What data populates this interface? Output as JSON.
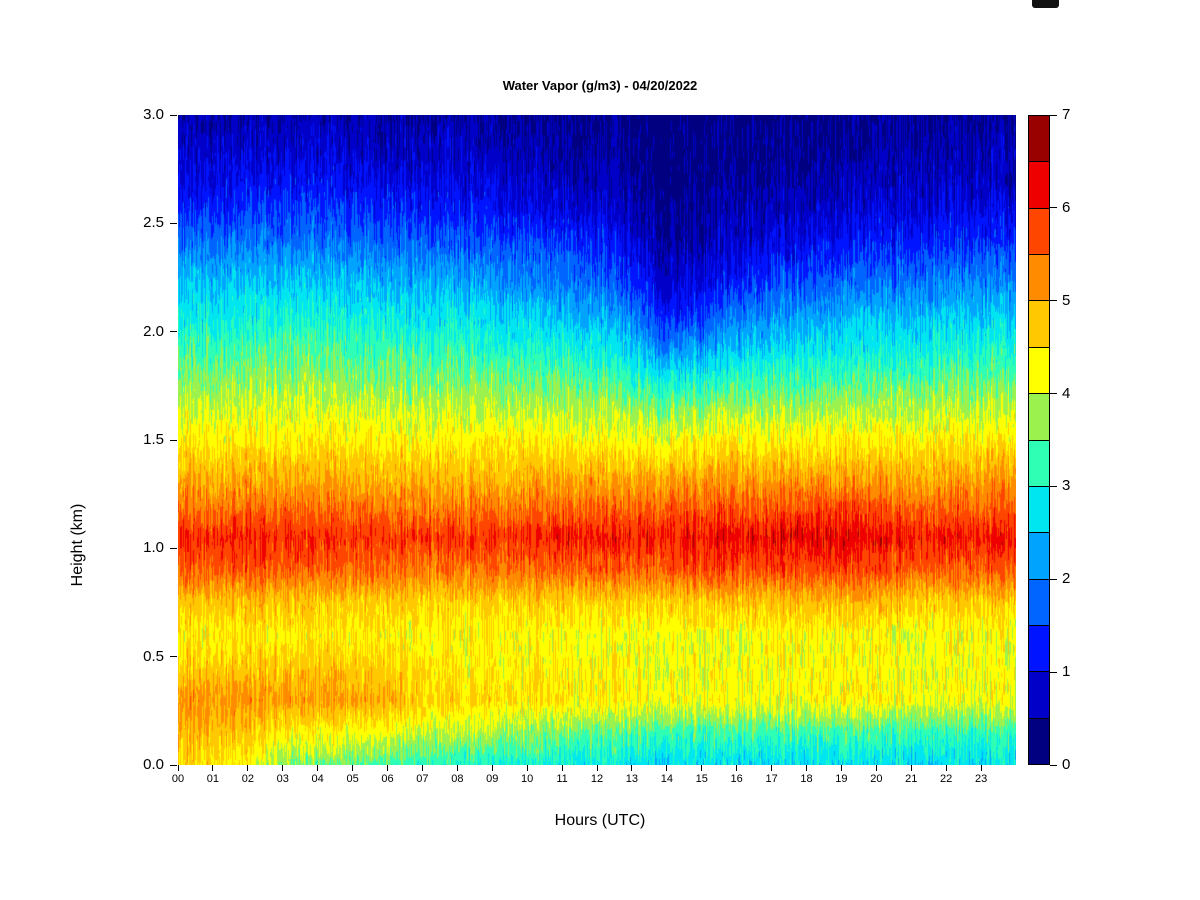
{
  "page": {
    "background": "#FFFFFF"
  },
  "chart_data": {
    "type": "heatmap",
    "title": "Water Vapor (g/m3) - 04/20/2022",
    "xlabel": "Hours (UTC)",
    "ylabel": "Height (km)",
    "units": "g/m3",
    "x_range_hours": [
      0,
      24
    ],
    "y_range_km": [
      0,
      3
    ],
    "grid_lines": "off",
    "x_tick_labels": [
      "00",
      "01",
      "02",
      "03",
      "04",
      "05",
      "06",
      "07",
      "08",
      "09",
      "10",
      "11",
      "12",
      "13",
      "14",
      "15",
      "16",
      "17",
      "18",
      "19",
      "20",
      "21",
      "22",
      "23"
    ],
    "y_tick_labels": [
      "0.0",
      "0.5",
      "1.0",
      "1.5",
      "2.0",
      "2.5",
      "3.0"
    ],
    "colorbar": {
      "min": 0,
      "max": 7,
      "segment_step": 0.5,
      "position": "right",
      "tick_labels": [
        "0",
        "1",
        "2",
        "3",
        "4",
        "5",
        "6",
        "7"
      ],
      "colors_low_to_high": [
        "#000080",
        "#0000C8",
        "#0014FF",
        "#0064FF",
        "#00A4FF",
        "#00E6F0",
        "#2EFFB4",
        "#9BF24E",
        "#FFFF00",
        "#FFC800",
        "#FF8C00",
        "#FF4600",
        "#EE0000",
        "#990000"
      ]
    },
    "grid": {
      "hour_step": 1,
      "height_step_km": 0.15,
      "heights_km": [
        0.0,
        0.15,
        0.3,
        0.45,
        0.6,
        0.75,
        0.9,
        1.05,
        1.2,
        1.35,
        1.5,
        1.65,
        1.8,
        1.95,
        2.1,
        2.25,
        2.4,
        2.55,
        2.7,
        2.85,
        3.0
      ],
      "values_by_hour": [
        [
          4.6,
          4.9,
          5.2,
          4.7,
          4.4,
          4.8,
          5.6,
          6.0,
          5.4,
          4.9,
          4.4,
          4.0,
          3.6,
          3.2,
          2.8,
          2.4,
          1.9,
          1.4,
          1.0,
          0.8,
          0.6
        ],
        [
          4.6,
          4.9,
          5.2,
          4.7,
          4.4,
          4.8,
          5.6,
          6.0,
          5.4,
          4.9,
          4.4,
          4.0,
          3.6,
          3.2,
          2.8,
          2.4,
          1.9,
          1.4,
          1.0,
          0.8,
          0.6
        ],
        [
          4.3,
          4.7,
          5.2,
          4.7,
          4.4,
          4.8,
          5.6,
          6.0,
          5.4,
          4.9,
          4.4,
          4.0,
          3.6,
          3.2,
          2.8,
          2.4,
          1.9,
          1.4,
          1.1,
          0.8,
          0.6
        ],
        [
          3.7,
          4.4,
          5.1,
          4.7,
          4.4,
          4.8,
          5.6,
          6.0,
          5.4,
          4.9,
          4.4,
          4.0,
          3.7,
          3.3,
          2.9,
          2.4,
          1.9,
          1.5,
          1.1,
          0.8,
          0.6
        ],
        [
          3.5,
          4.3,
          5.1,
          4.7,
          4.4,
          4.7,
          5.5,
          5.9,
          5.4,
          4.9,
          4.4,
          4.0,
          3.7,
          3.3,
          2.9,
          2.4,
          1.9,
          1.5,
          1.1,
          0.8,
          0.6
        ],
        [
          3.5,
          4.3,
          5.1,
          4.7,
          4.4,
          4.7,
          5.5,
          5.9,
          5.4,
          4.9,
          4.4,
          4.0,
          3.6,
          3.2,
          2.8,
          2.4,
          1.9,
          1.4,
          1.0,
          0.8,
          0.6
        ],
        [
          3.4,
          4.2,
          5.0,
          4.7,
          4.4,
          4.7,
          5.5,
          5.9,
          5.4,
          4.8,
          4.4,
          4.0,
          3.6,
          3.2,
          2.8,
          2.3,
          1.8,
          1.4,
          1.0,
          0.7,
          0.5
        ],
        [
          3.2,
          4.0,
          4.7,
          4.5,
          4.3,
          4.6,
          5.4,
          5.9,
          5.3,
          4.8,
          4.3,
          3.9,
          3.5,
          3.1,
          2.7,
          2.3,
          1.8,
          1.3,
          0.9,
          0.7,
          0.5
        ],
        [
          3.1,
          3.9,
          4.6,
          4.4,
          4.3,
          4.6,
          5.4,
          5.9,
          5.3,
          4.8,
          4.3,
          3.9,
          3.5,
          3.1,
          2.7,
          2.2,
          1.7,
          1.3,
          0.9,
          0.7,
          0.5
        ],
        [
          3.0,
          3.8,
          4.6,
          4.4,
          4.3,
          4.7,
          5.5,
          6.0,
          5.4,
          4.8,
          4.4,
          3.9,
          3.5,
          3.0,
          2.6,
          2.1,
          1.7,
          1.2,
          0.9,
          0.6,
          0.5
        ],
        [
          3.0,
          3.7,
          4.5,
          4.4,
          4.3,
          4.7,
          5.5,
          6.0,
          5.4,
          4.9,
          4.4,
          3.9,
          3.4,
          3.0,
          2.5,
          2.0,
          1.6,
          1.1,
          0.8,
          0.6,
          0.4
        ],
        [
          2.9,
          3.6,
          4.5,
          4.4,
          4.3,
          4.7,
          5.6,
          6.1,
          5.5,
          4.9,
          4.4,
          3.9,
          3.4,
          2.9,
          2.4,
          1.9,
          1.5,
          1.0,
          0.7,
          0.5,
          0.4
        ],
        [
          2.9,
          3.5,
          4.4,
          4.3,
          4.2,
          4.7,
          5.6,
          6.1,
          5.5,
          4.9,
          4.3,
          3.8,
          3.3,
          2.8,
          2.3,
          1.8,
          1.3,
          0.9,
          0.6,
          0.5,
          0.4
        ],
        [
          2.8,
          3.4,
          4.4,
          4.3,
          4.2,
          4.7,
          5.6,
          6.1,
          5.5,
          4.9,
          4.3,
          3.8,
          3.1,
          2.5,
          1.9,
          1.4,
          1.0,
          0.7,
          0.5,
          0.4,
          0.3
        ],
        [
          2.7,
          3.3,
          4.3,
          4.2,
          4.2,
          4.7,
          5.7,
          6.2,
          5.6,
          4.9,
          4.3,
          3.6,
          2.8,
          1.9,
          1.2,
          0.8,
          0.5,
          0.4,
          0.3,
          0.25,
          0.2
        ],
        [
          2.7,
          3.3,
          4.3,
          4.2,
          4.2,
          4.8,
          5.7,
          6.2,
          5.6,
          5.0,
          4.3,
          3.7,
          2.9,
          2.1,
          1.4,
          0.9,
          0.6,
          0.5,
          0.4,
          0.3,
          0.2
        ],
        [
          2.7,
          3.3,
          4.3,
          4.2,
          4.2,
          4.8,
          5.7,
          6.2,
          5.6,
          5.0,
          4.4,
          3.8,
          3.1,
          2.4,
          1.8,
          1.2,
          0.8,
          0.6,
          0.4,
          0.3,
          0.3
        ],
        [
          2.7,
          3.3,
          4.3,
          4.3,
          4.3,
          4.8,
          5.8,
          6.3,
          5.6,
          5.0,
          4.4,
          3.8,
          3.2,
          2.6,
          2.0,
          1.5,
          1.0,
          0.7,
          0.5,
          0.4,
          0.3
        ],
        [
          2.7,
          3.3,
          4.3,
          4.3,
          4.3,
          4.9,
          5.8,
          6.3,
          5.7,
          5.0,
          4.4,
          3.8,
          3.2,
          2.7,
          2.1,
          1.6,
          1.1,
          0.8,
          0.5,
          0.4,
          0.3
        ],
        [
          2.7,
          3.3,
          4.3,
          4.3,
          4.3,
          4.9,
          5.8,
          6.3,
          5.7,
          5.0,
          4.4,
          3.8,
          3.2,
          2.7,
          2.2,
          1.7,
          1.2,
          0.8,
          0.6,
          0.4,
          0.3
        ],
        [
          2.7,
          3.3,
          4.3,
          4.3,
          4.3,
          4.8,
          5.7,
          6.2,
          5.6,
          5.0,
          4.4,
          3.8,
          3.3,
          2.8,
          2.3,
          1.8,
          1.3,
          0.9,
          0.6,
          0.5,
          0.4
        ],
        [
          2.7,
          3.2,
          4.2,
          4.2,
          4.2,
          4.7,
          5.6,
          6.1,
          5.5,
          4.9,
          4.4,
          3.9,
          3.3,
          2.8,
          2.3,
          1.8,
          1.3,
          0.9,
          0.7,
          0.5,
          0.4
        ],
        [
          2.7,
          3.2,
          4.2,
          4.2,
          4.2,
          4.7,
          5.6,
          6.1,
          5.5,
          4.9,
          4.4,
          3.9,
          3.4,
          2.9,
          2.4,
          1.9,
          1.4,
          1.0,
          0.7,
          0.5,
          0.4
        ],
        [
          2.7,
          3.2,
          4.2,
          4.2,
          4.2,
          4.7,
          5.6,
          6.1,
          5.5,
          5.0,
          4.4,
          3.9,
          3.4,
          2.9,
          2.4,
          1.9,
          1.4,
          1.0,
          0.7,
          0.6,
          0.4
        ],
        [
          2.7,
          3.2,
          4.2,
          4.2,
          4.2,
          4.7,
          5.6,
          6.1,
          5.5,
          5.0,
          4.4,
          3.9,
          3.4,
          2.9,
          2.4,
          1.9,
          1.4,
          1.0,
          0.7,
          0.6,
          0.4
        ]
      ]
    }
  }
}
